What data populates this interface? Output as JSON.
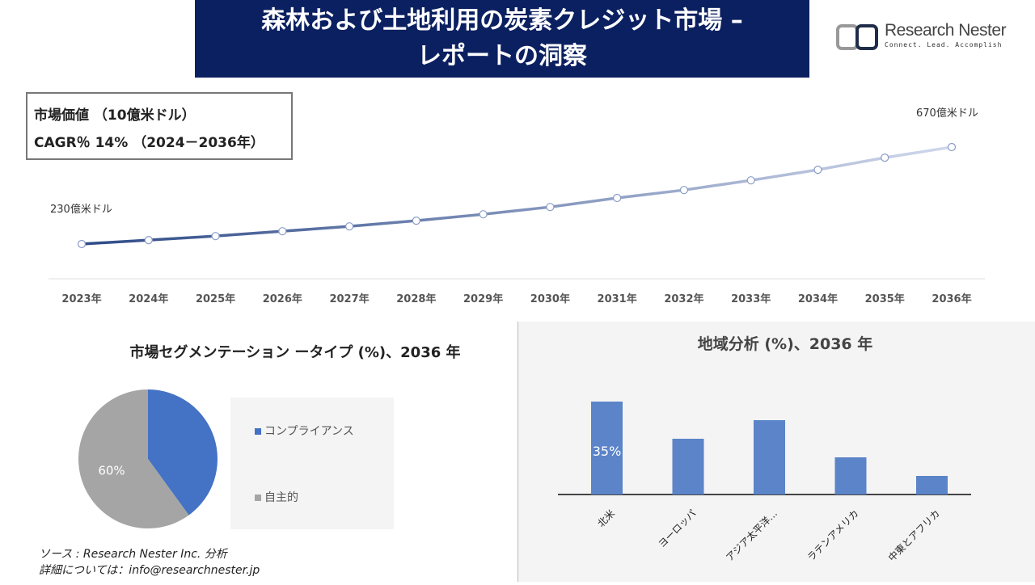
{
  "header": {
    "title_line1": "森林および土地利用の炭素クレジット市場 –",
    "title_line2": "レポートの洞察"
  },
  "logo": {
    "name": "Research Nester",
    "tagline": "Connect. Lead. Accomplish"
  },
  "kpi": {
    "market_value": "市場価値 （10億米ドル）",
    "cagr": "CAGR％ 14% （2024－2036年）"
  },
  "chart_data": [
    {
      "type": "line",
      "x": [
        "2023年",
        "2024年",
        "2025年",
        "2026年",
        "2027年",
        "2028年",
        "2029年",
        "2030年",
        "2031年",
        "2032年",
        "2033年",
        "2034年",
        "2035年",
        "2036年"
      ],
      "values": [
        230,
        248,
        266,
        288,
        310,
        336,
        365,
        398,
        439,
        475,
        519,
        567,
        622,
        670
      ],
      "annotations": {
        "start": "230億米ドル",
        "end": "670億米ドル"
      },
      "grid": false
    },
    {
      "type": "pie",
      "title": "市場セグメンテーション ータイプ (%)、2036 年",
      "slices": [
        {
          "name": "コンプライアンス",
          "value": 40,
          "color": "#4472c4"
        },
        {
          "name": "自主的",
          "value": 60,
          "color": "#a5a5a5",
          "label": "60%"
        }
      ],
      "legend": "right"
    },
    {
      "type": "bar",
      "title": "地域分析 (%)、2036 年",
      "categories": [
        "北米",
        "ヨーロッパ",
        "アジア太平洋…",
        "ラテンアメリカ",
        "中東とアフリカ"
      ],
      "values": [
        35,
        21,
        28,
        14,
        7
      ],
      "data_labels": [
        "35%",
        "",
        "",
        "",
        ""
      ],
      "color": "#5b84c9"
    }
  ],
  "source": {
    "line1": "ソース : Research Nester Inc. 分析",
    "line2": "詳細については：info@researchnester.jp"
  }
}
